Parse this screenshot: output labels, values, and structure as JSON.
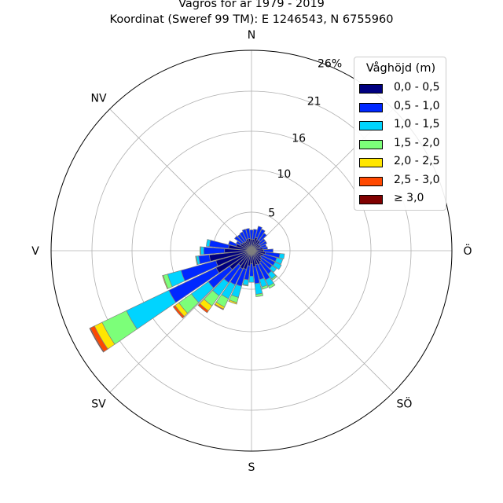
{
  "title": {
    "line1": "Vågros för år 1979 - 2019",
    "line2": "Koordinat (Sweref 99 TM): E 1246543, N 6755960"
  },
  "chart_data": {
    "type": "polar-stacked-bar",
    "subtype": "wave rose",
    "radial_unit": "%",
    "radial_max": 26,
    "radial_ticks": [
      "5",
      "10",
      "16",
      "21",
      "26%"
    ],
    "radial_tick_values": [
      5,
      10.5,
      15.5,
      20.7,
      26
    ],
    "grid": true,
    "legend_position": "top-right",
    "compass_labels": [
      "N",
      "NV",
      "V",
      "SV",
      "S",
      "SÖ",
      "Ö"
    ],
    "compass_angles_deg": [
      0,
      315,
      270,
      225,
      180,
      135,
      90
    ],
    "legend_title": "Våghöjd (m)",
    "bins": [
      "0,0 - 0,5",
      "0,5 - 1,0",
      "1,0 - 1,5",
      "1,5 - 2,0",
      "2,0 - 2,5",
      "2,5 - 3,0",
      "≥ 3,0"
    ],
    "colors": [
      "#000080",
      "#0028ff",
      "#00d4ff",
      "#7cff79",
      "#ffe600",
      "#ff4800",
      "#800000"
    ],
    "direction_sector_width_deg": 10,
    "directions": [
      {
        "dir_deg": 0,
        "values": [
          1.5,
          1.2
        ]
      },
      {
        "dir_deg": 10,
        "values": [
          1.5,
          1.3
        ]
      },
      {
        "dir_deg": 20,
        "values": [
          1.8,
          1.5
        ]
      },
      {
        "dir_deg": 30,
        "values": [
          1.6,
          1.5
        ]
      },
      {
        "dir_deg": 40,
        "values": [
          1.6,
          1.2
        ]
      },
      {
        "dir_deg": 50,
        "values": [
          1.2,
          1.0
        ]
      },
      {
        "dir_deg": 60,
        "values": [
          1.3,
          0.9
        ]
      },
      {
        "dir_deg": 70,
        "values": [
          1.1,
          0.9
        ]
      },
      {
        "dir_deg": 80,
        "values": [
          1.5,
          0.6
        ]
      },
      {
        "dir_deg": 90,
        "values": [
          1.6,
          1.2
        ]
      },
      {
        "dir_deg": 100,
        "values": [
          1.8,
          1.9,
          0.6
        ]
      },
      {
        "dir_deg": 110,
        "values": [
          1.6,
          1.8,
          0.8
        ]
      },
      {
        "dir_deg": 120,
        "values": [
          1.4,
          2.0,
          0.9
        ]
      },
      {
        "dir_deg": 130,
        "values": [
          1.6,
          1.7,
          0.7
        ]
      },
      {
        "dir_deg": 140,
        "values": [
          1.8,
          1.9,
          0.8,
          0.2
        ]
      },
      {
        "dir_deg": 150,
        "values": [
          2.0,
          2.2,
          0.9,
          0.3
        ]
      },
      {
        "dir_deg": 160,
        "values": [
          1.9,
          2.0,
          1.0,
          0.3
        ]
      },
      {
        "dir_deg": 170,
        "values": [
          2.1,
          2.2,
          1.4,
          0.3
        ]
      },
      {
        "dir_deg": 180,
        "values": [
          1.7,
          1.6,
          0.8
        ]
      },
      {
        "dir_deg": 190,
        "values": [
          2.0,
          1.8,
          0.7,
          0.1
        ]
      },
      {
        "dir_deg": 200,
        "values": [
          2.5,
          2.3,
          1.5,
          0.7,
          0.2
        ]
      },
      {
        "dir_deg": 210,
        "values": [
          2.6,
          2.3,
          2.0,
          1.2,
          0.3,
          0.1
        ]
      },
      {
        "dir_deg": 220,
        "values": [
          2.4,
          2.7,
          2.1,
          1.6,
          0.8,
          0.3
        ]
      },
      {
        "dir_deg": 230,
        "values": [
          3.5,
          3.4,
          2.7,
          2.0,
          0.6,
          0.3
        ]
      },
      {
        "dir_deg": 240,
        "values": [
          5.1,
          6.8,
          6.1,
          3.5,
          1.1,
          0.6,
          0.1
        ]
      },
      {
        "dir_deg": 250,
        "values": [
          4.8,
          4.7,
          1.8,
          0.6,
          0.1
        ]
      },
      {
        "dir_deg": 260,
        "values": [
          5.5,
          1.4,
          0.3,
          0.1
        ]
      },
      {
        "dir_deg": 270,
        "values": [
          3.5,
          2.7,
          0.4,
          0.1
        ]
      },
      {
        "dir_deg": 280,
        "values": [
          3.0,
          2.5,
          0.4
        ]
      },
      {
        "dir_deg": 290,
        "values": [
          2.1,
          1.0
        ]
      },
      {
        "dir_deg": 300,
        "values": [
          1.6,
          0.6
        ]
      },
      {
        "dir_deg": 310,
        "values": [
          1.5,
          1.2
        ]
      },
      {
        "dir_deg": 320,
        "values": [
          1.4,
          1.2
        ]
      },
      {
        "dir_deg": 330,
        "values": [
          1.4,
          1.3
        ]
      },
      {
        "dir_deg": 340,
        "values": [
          1.6,
          1.3
        ]
      },
      {
        "dir_deg": 350,
        "values": [
          1.6,
          1.3
        ]
      }
    ]
  }
}
